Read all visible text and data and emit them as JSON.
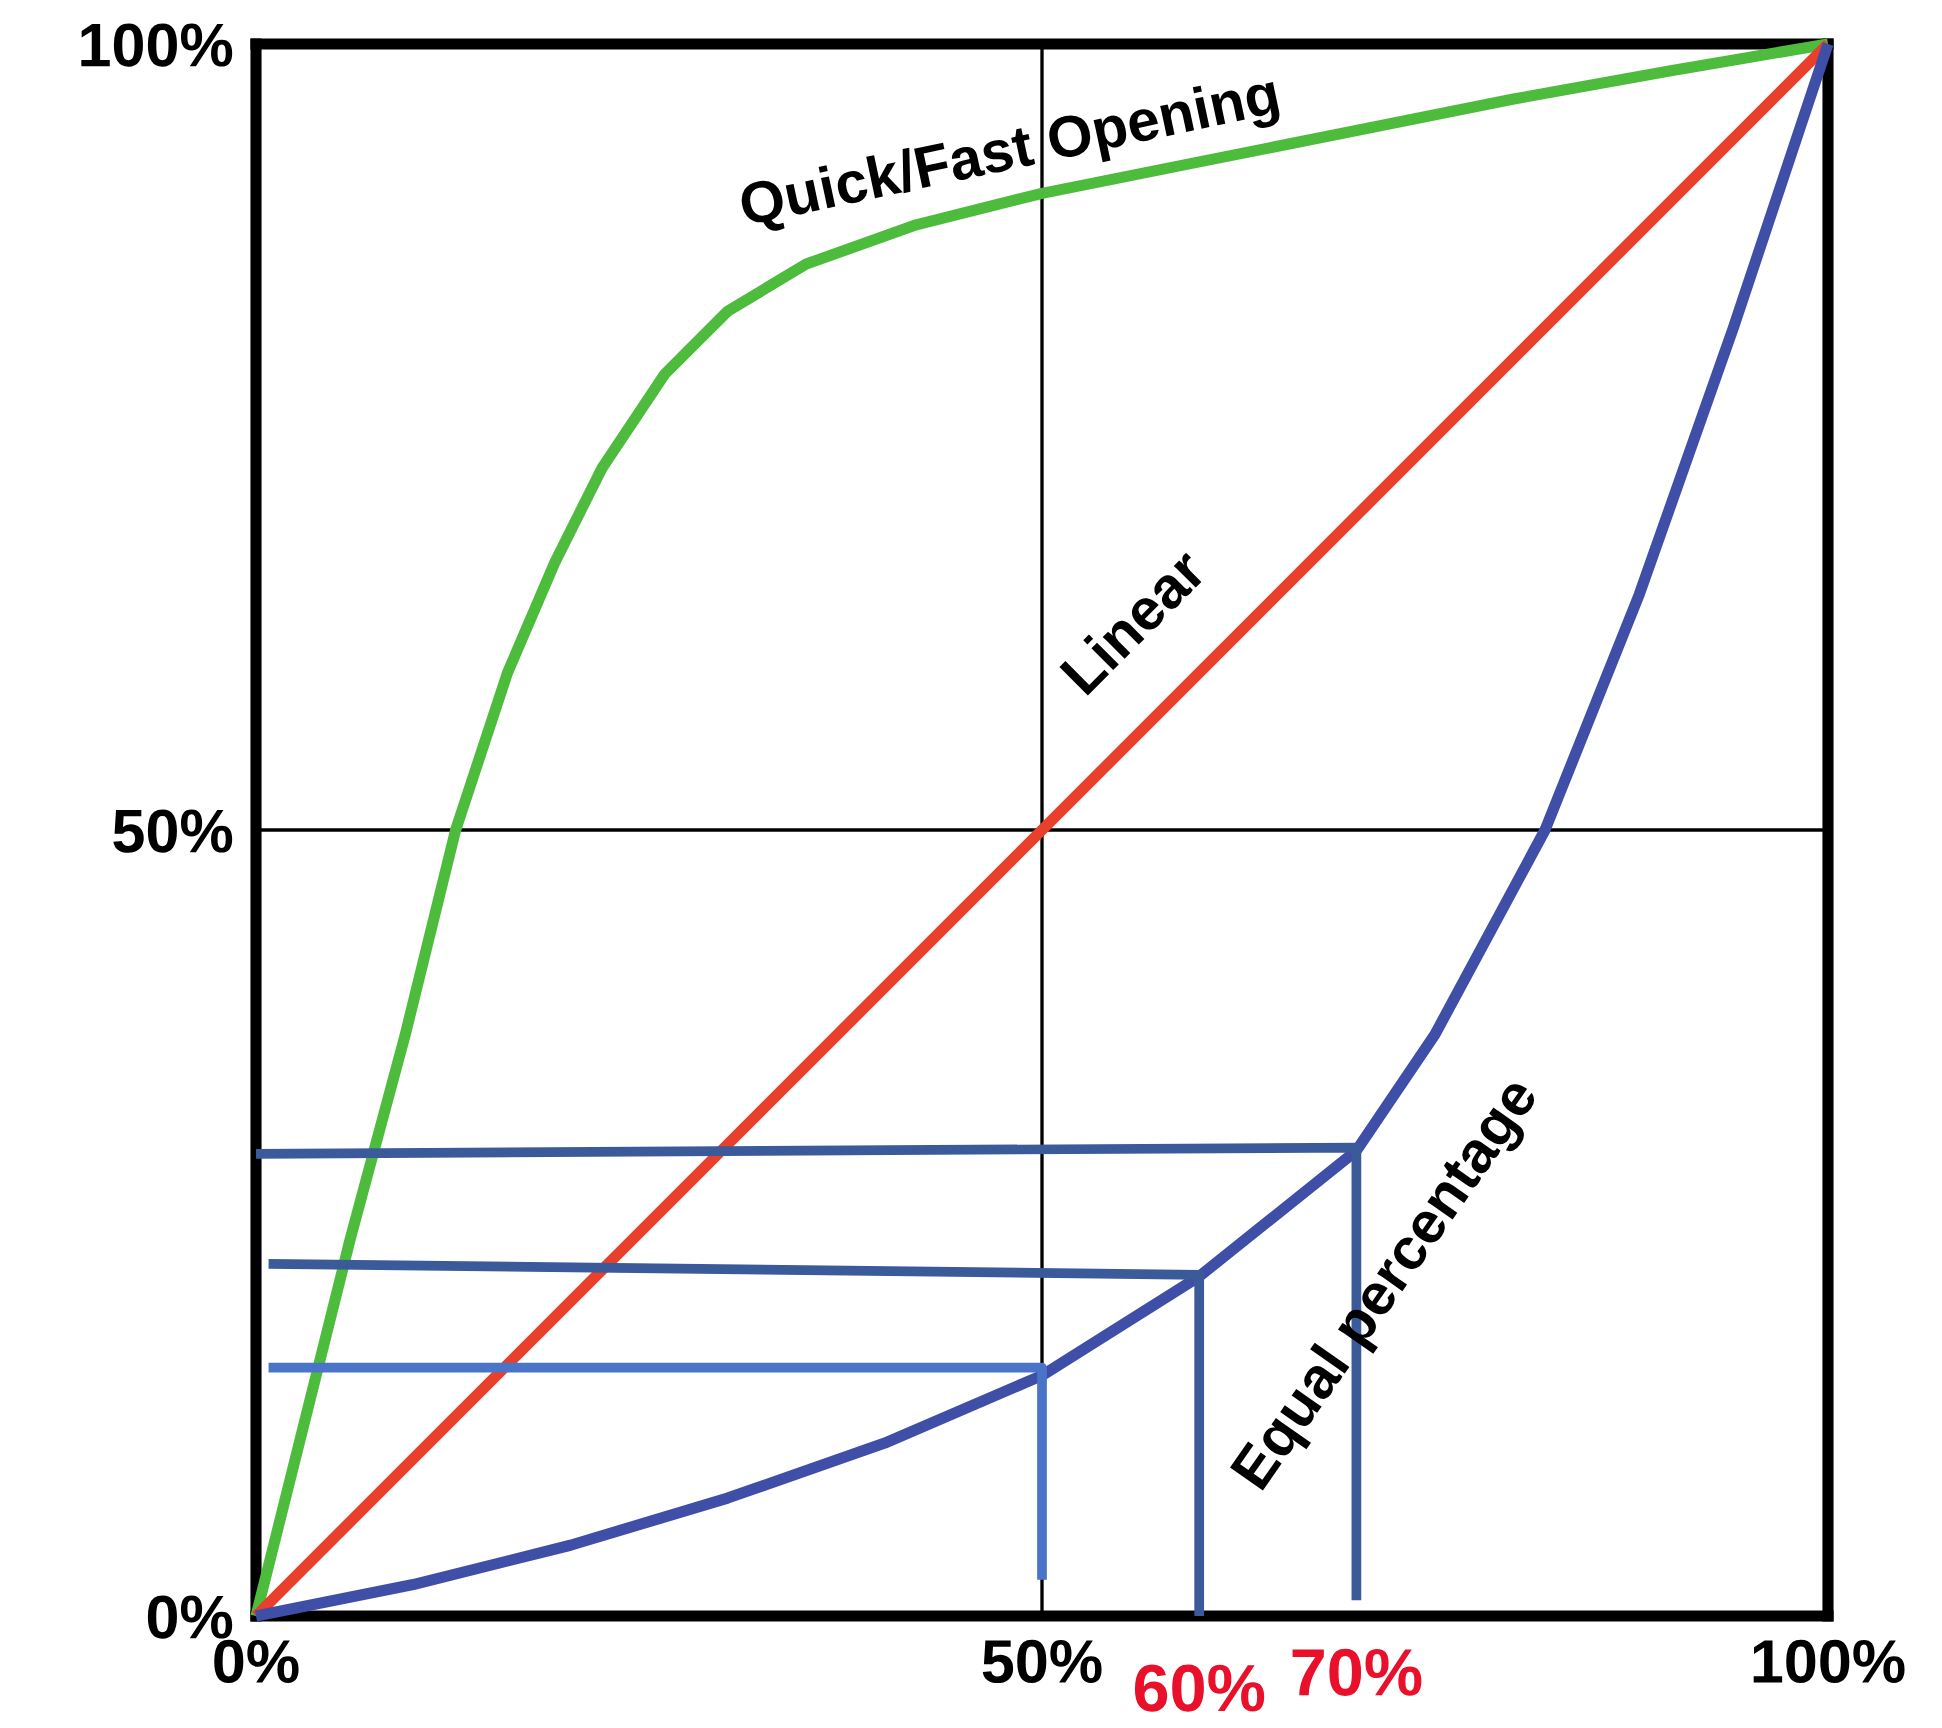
{
  "chart_data": {
    "type": "line",
    "xlim": [
      0,
      100
    ],
    "ylim": [
      0,
      100
    ],
    "xticks": [
      {
        "value": 0,
        "label": "0%"
      },
      {
        "value": 50,
        "label": "50%"
      },
      {
        "value": 100,
        "label": "100%"
      }
    ],
    "yticks": [
      {
        "value": 0,
        "label": "0%"
      },
      {
        "value": 50,
        "label": "50%"
      },
      {
        "value": 100,
        "label": "100%"
      }
    ],
    "grid": true,
    "series": [
      {
        "name": "Quick/Fast Opening",
        "color": "#4dbb3c",
        "x": [
          0,
          3,
          6,
          9.5,
          12.7,
          16,
          19,
          22,
          26,
          30,
          35,
          42,
          50,
          60,
          70,
          80,
          90,
          100
        ],
        "values": [
          0,
          12,
          24,
          37,
          50,
          60,
          67,
          73,
          79,
          83,
          86,
          88.5,
          90.5,
          92.5,
          94.5,
          96.5,
          98.3,
          100
        ]
      },
      {
        "name": "Linear",
        "color": "#e8402a",
        "x": [
          0,
          100
        ],
        "values": [
          0,
          100
        ]
      },
      {
        "name": "Equal percentage",
        "color": "#3f4fa8",
        "x": [
          0,
          10,
          20,
          30,
          40,
          50,
          60,
          70,
          75,
          82,
          88,
          94,
          100
        ],
        "values": [
          0,
          2,
          4.5,
          7.5,
          11,
          15.3,
          21.6,
          29.6,
          37,
          50,
          65,
          82,
          100
        ]
      },
      {
        "color": "#4a74c8",
        "x": [
          0.8,
          50,
          50
        ],
        "values": [
          15.8,
          15.8,
          2.3
        ]
      },
      {
        "color": "#3a5a9a",
        "x": [
          0.8,
          60,
          60
        ],
        "values": [
          22.4,
          21.7,
          0
        ]
      },
      {
        "color": "#3a5a9a",
        "x": [
          0,
          70,
          70
        ],
        "values": [
          29.4,
          29.8,
          1
        ]
      }
    ],
    "annotations": [
      {
        "text": "60%",
        "x": 60,
        "y": 0
      },
      {
        "text": "70%",
        "x": 70,
        "y": 1
      }
    ]
  }
}
